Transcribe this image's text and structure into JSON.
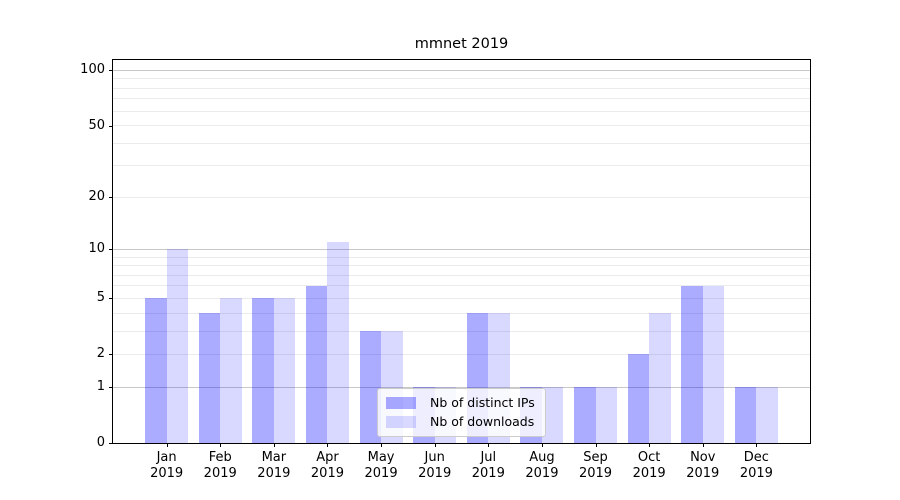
{
  "chart_data": {
    "type": "bar",
    "title": "mmnet 2019",
    "categories": [
      "Jan",
      "Feb",
      "Mar",
      "Apr",
      "May",
      "Jun",
      "Jul",
      "Aug",
      "Sep",
      "Oct",
      "Nov",
      "Dec"
    ],
    "category_year": "2019",
    "series": [
      {
        "name": "Nb of distinct IPs",
        "color": "rgba(0,0,255,0.33)",
        "values": [
          5,
          4,
          5,
          6,
          3,
          1,
          4,
          1,
          1,
          2,
          6,
          1
        ]
      },
      {
        "name": "Nb of downloads",
        "color": "rgba(0,0,255,0.15)",
        "values": [
          10,
          5,
          5,
          11,
          3,
          1,
          4,
          1,
          1,
          4,
          6,
          1
        ]
      }
    ],
    "y_axis": {
      "scale": "log(value+1)",
      "tick_labels": [
        0,
        1,
        2,
        5,
        10,
        20,
        50,
        100
      ],
      "major_gridlines": [
        1,
        10,
        100
      ],
      "minor_gridlines": [
        2,
        3,
        4,
        5,
        6,
        7,
        8,
        9,
        20,
        30,
        40,
        50,
        60,
        70,
        80,
        90
      ],
      "top_value": 114
    },
    "legend": {
      "position": "lower-center",
      "entries": [
        "Nb of distinct IPs",
        "Nb of downloads"
      ]
    },
    "grid": "on",
    "colors": {
      "major_grid": "#c8c8c8",
      "minor_grid": "#ebebeb",
      "axis": "#000000",
      "background": "#ffffff",
      "legend_border": "#cccccc"
    },
    "bar_width_fraction_of_step": 0.4
  }
}
